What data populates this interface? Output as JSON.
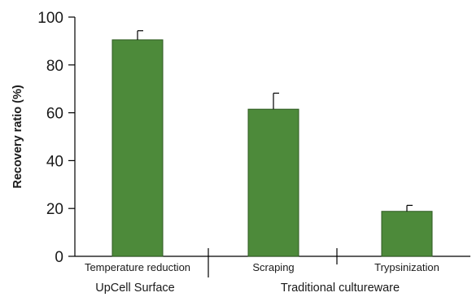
{
  "chart_data": {
    "type": "bar",
    "categories": [
      "Temperature reduction",
      "Scraping",
      "Trypsinization"
    ],
    "values": [
      90.5,
      61.5,
      18.8
    ],
    "errors": [
      3.8,
      6.7,
      2.5
    ],
    "groups": [
      {
        "label": "UpCell Surface",
        "categories": [
          0
        ]
      },
      {
        "label": "Traditional cultureware",
        "categories": [
          1,
          2
        ]
      }
    ],
    "title": "",
    "xlabel": "",
    "ylabel": "Recovery ratio (%)",
    "ylim": [
      0,
      100
    ],
    "yticks": [
      0,
      20,
      40,
      60,
      80,
      100
    ],
    "grid": false,
    "colors": {
      "bar": "#4d8a3a",
      "bar_edge": "#2f5a22",
      "axis": "#000000"
    }
  }
}
